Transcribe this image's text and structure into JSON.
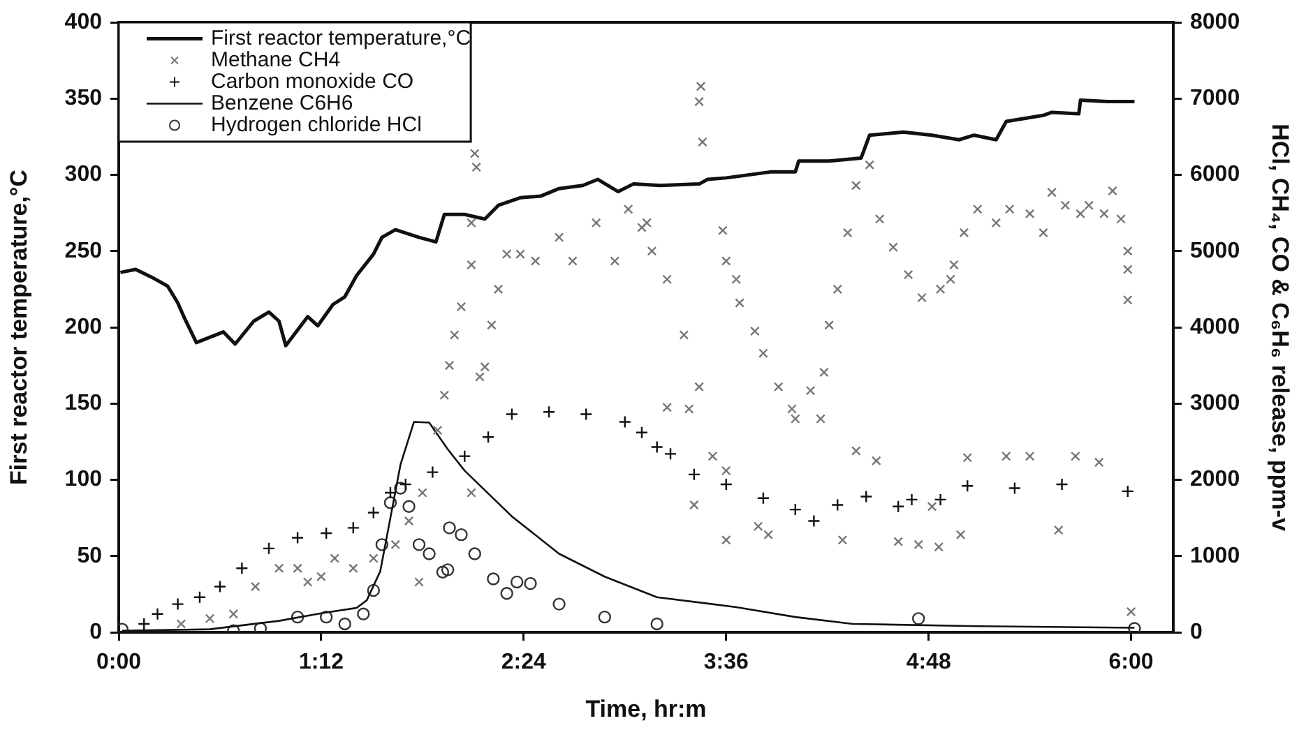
{
  "chart_data": {
    "type": "line",
    "xlabel": "Time, hr:m",
    "ylabel": "First reactor temperature,°C",
    "y2label": "HCl, CH₄, CO & C₆H₆ release, ppm-v",
    "xlim": [
      0,
      6.25
    ],
    "xticks": [
      {
        "value": 0,
        "label": "0:00"
      },
      {
        "value": 1.2,
        "label": "1:12"
      },
      {
        "value": 2.4,
        "label": "2:24"
      },
      {
        "value": 3.6,
        "label": "3:36"
      },
      {
        "value": 4.8,
        "label": "4:48"
      },
      {
        "value": 6,
        "label": "6:00"
      }
    ],
    "ylim": [
      0,
      400
    ],
    "yticks": [
      0,
      50,
      100,
      150,
      200,
      250,
      300,
      350,
      400
    ],
    "y2lim": [
      0,
      8000
    ],
    "y2ticks": [
      0,
      1000,
      2000,
      3000,
      4000,
      5000,
      6000,
      7000,
      8000
    ],
    "legend": "top left",
    "grid": false,
    "series": [
      {
        "name": "First reactor temperature,°C",
        "type": "line",
        "color": "#111111",
        "marker": "none",
        "x": [
          0.01,
          0.1,
          0.21,
          0.29,
          0.35,
          0.39,
          0.46,
          0.62,
          0.69,
          0.8,
          0.89,
          0.95,
          0.99,
          1.12,
          1.18,
          1.27,
          1.34,
          1.41,
          1.51,
          1.56,
          1.64,
          1.78,
          1.88,
          1.93,
          2.05,
          2.17,
          2.25,
          2.38,
          2.5,
          2.61,
          2.75,
          2.84,
          2.96,
          3.05,
          3.21,
          3.44,
          3.49,
          3.6,
          3.87,
          4.01,
          4.03,
          4.21,
          4.4,
          4.45,
          4.65,
          4.82,
          4.98,
          5.07,
          5.2,
          5.26,
          5.48,
          5.53,
          5.69,
          5.7,
          5.86,
          6.02
        ],
        "values": [
          236,
          238,
          232,
          227,
          216,
          206,
          190,
          197,
          189,
          204,
          210,
          204,
          188,
          207,
          201,
          215,
          220,
          234,
          248,
          259,
          264,
          259,
          256,
          274,
          274,
          271,
          280,
          285,
          286,
          291,
          293,
          297,
          289,
          294,
          293,
          294,
          297,
          298,
          302,
          302,
          309,
          309,
          311,
          326,
          328,
          326,
          323,
          326,
          323,
          335,
          339,
          341,
          340,
          349,
          348,
          348
        ]
      },
      {
        "name": "Methane CH4",
        "type": "scatter",
        "axis": "y2",
        "color": "#777777",
        "marker": "cross",
        "x": [
          0.37,
          0.54,
          0.68,
          0.81,
          0.95,
          1.06,
          1.12,
          1.2,
          1.28,
          1.39,
          1.51,
          1.64,
          1.72,
          1.78,
          1.8,
          1.89,
          1.96,
          1.93,
          1.99,
          2.03,
          2.09,
          2.09,
          2.11,
          2.12,
          2.09,
          2.14,
          2.17,
          2.21,
          2.25,
          2.3,
          2.38,
          2.47,
          2.61,
          2.69,
          2.83,
          2.94,
          3.02,
          3.13,
          3.1,
          3.16,
          3.25,
          3.35,
          3.44,
          3.38,
          3.52,
          3.6,
          3.45,
          3.44,
          3.46,
          3.41,
          3.25,
          3.6,
          3.85,
          3.58,
          3.6,
          3.66,
          3.68,
          3.77,
          3.82,
          3.91,
          3.99,
          4.01,
          4.1,
          4.16,
          4.18,
          4.21,
          4.26,
          4.32,
          4.37,
          4.45,
          4.37,
          4.49,
          4.29,
          4.62,
          4.74,
          4.86,
          4.82,
          4.51,
          4.59,
          4.68,
          4.76,
          4.87,
          4.93,
          4.95,
          5.01,
          5.09,
          5.2,
          5.28,
          5.4,
          5.48,
          5.53,
          5.61,
          5.7,
          5.75,
          5.84,
          5.89,
          5.94,
          5.98,
          5.98,
          5.98,
          6.0,
          5.03,
          5.26,
          5.4,
          5.67,
          5.81,
          4.99,
          5.57,
          3.79
        ],
        "values": [
          110,
          180,
          240,
          600,
          840,
          840,
          660,
          730,
          970,
          840,
          970,
          1150,
          1460,
          660,
          1830,
          2650,
          3500,
          3110,
          3900,
          4270,
          4820,
          5370,
          6280,
          6100,
          1830,
          3350,
          3480,
          4030,
          4500,
          4960,
          4960,
          4870,
          5180,
          4870,
          5370,
          4870,
          5550,
          5370,
          5310,
          5000,
          4630,
          3900,
          3220,
          2930,
          2310,
          2120,
          7160,
          6960,
          6430,
          1670,
          2950,
          1210,
          1280,
          5270,
          4870,
          4630,
          4320,
          3950,
          3660,
          3220,
          2930,
          2800,
          3170,
          2800,
          3410,
          4030,
          4500,
          5240,
          5860,
          6130,
          2380,
          2250,
          1210,
          1190,
          1150,
          1120,
          1650,
          5420,
          5050,
          4690,
          4390,
          4500,
          4630,
          4820,
          5240,
          5550,
          5370,
          5550,
          5490,
          5240,
          5770,
          5600,
          5490,
          5600,
          5490,
          5790,
          5420,
          5000,
          4760,
          4360,
          270,
          2290,
          2310,
          2310,
          2310,
          2230,
          1280,
          1340,
          1390
        ]
      },
      {
        "name": "Carbon monoxide CO",
        "type": "scatter",
        "axis": "y2",
        "color": "#111111",
        "marker": "plus",
        "x": [
          0.15,
          0.23,
          0.35,
          0.48,
          0.6,
          0.73,
          0.89,
          1.06,
          1.23,
          1.39,
          1.51,
          1.61,
          1.7,
          1.86,
          2.05,
          2.19,
          2.33,
          2.55,
          2.77,
          3.0,
          3.1,
          3.19,
          3.27,
          3.41,
          3.6,
          3.82,
          4.01,
          4.12,
          4.26,
          4.43,
          4.62,
          4.7,
          4.87,
          5.03,
          5.31,
          5.59,
          5.98
        ],
        "values": [
          110,
          240,
          370,
          460,
          600,
          840,
          1100,
          1240,
          1300,
          1370,
          1570,
          1830,
          1940,
          2100,
          2310,
          2560,
          2860,
          2890,
          2860,
          2760,
          2620,
          2430,
          2340,
          2070,
          1940,
          1760,
          1610,
          1460,
          1670,
          1780,
          1650,
          1740,
          1740,
          1920,
          1890,
          1940,
          1850
        ]
      },
      {
        "name": "Benzene C6H6",
        "type": "line",
        "axis": "y2",
        "color": "#111111",
        "marker": "none",
        "x": [
          0.02,
          0.54,
          0.95,
          1.2,
          1.41,
          1.47,
          1.55,
          1.61,
          1.67,
          1.75,
          1.84,
          1.95,
          2.05,
          2.33,
          2.61,
          2.88,
          3.19,
          3.66,
          4.01,
          4.35,
          5.09,
          6.02
        ],
        "values": [
          20,
          40,
          150,
          250,
          320,
          420,
          800,
          1500,
          2200,
          2760,
          2750,
          2400,
          2120,
          1520,
          1030,
          730,
          460,
          330,
          200,
          110,
          80,
          60
        ]
      },
      {
        "name": "Hydrogen chloride HCl",
        "type": "scatter",
        "axis": "y2",
        "color": "#333333",
        "marker": "circle",
        "x": [
          0.02,
          0.68,
          0.84,
          1.06,
          1.23,
          1.34,
          1.45,
          1.51,
          1.56,
          1.61,
          1.67,
          1.72,
          1.78,
          1.84,
          1.92,
          1.95,
          1.96,
          2.03,
          2.11,
          2.22,
          2.3,
          2.36,
          2.44,
          2.61,
          2.88,
          3.19,
          4.74,
          6.02
        ],
        "values": [
          40,
          20,
          50,
          200,
          200,
          110,
          240,
          550,
          1150,
          1700,
          1890,
          1650,
          1150,
          1030,
          790,
          820,
          1370,
          1280,
          1030,
          700,
          510,
          660,
          640,
          370,
          200,
          110,
          180,
          50
        ]
      }
    ]
  }
}
